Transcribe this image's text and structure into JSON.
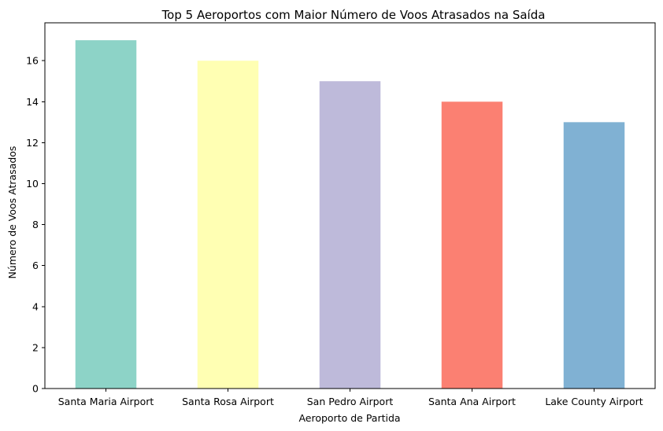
{
  "chart_data": {
    "type": "bar",
    "title": "Top 5 Aeroportos com Maior Número de Voos Atrasados na Saída",
    "xlabel": "Aeroporto de Partida",
    "ylabel": "Número de Voos Atrasados",
    "categories": [
      "Santa Maria Airport",
      "Santa Rosa Airport",
      "San Pedro Airport",
      "Santa Ana Airport",
      "Lake County Airport"
    ],
    "values": [
      17,
      16,
      15,
      14,
      13
    ],
    "colors": [
      "#8dd3c7",
      "#ffffb3",
      "#bebada",
      "#fb8072",
      "#80b1d3"
    ],
    "ylim": [
      0,
      17.85
    ],
    "yticks": [
      0,
      2,
      4,
      6,
      8,
      10,
      12,
      14,
      16
    ],
    "grid": false,
    "legend": "none"
  }
}
